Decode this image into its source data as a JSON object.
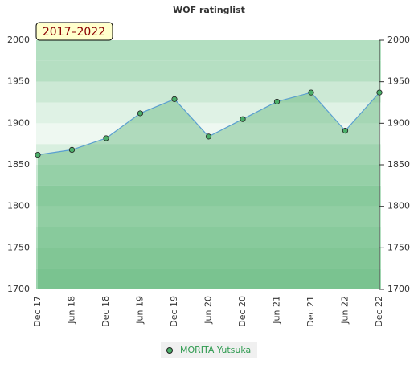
{
  "chart_data": {
    "type": "area",
    "title": "WOF ratinglist",
    "annotation": "2017–2022",
    "categories": [
      "Dec 17",
      "Jun 18",
      "Dec 18",
      "Jun 19",
      "Dec 19",
      "Jun 20",
      "Dec 20",
      "Jun 21",
      "Dec 21",
      "Jun 22",
      "Dec 22"
    ],
    "series": [
      {
        "name": "MORITA Yutsuka",
        "color": "#5a9fd0",
        "values": [
          1862,
          1868,
          1882,
          1912,
          1929,
          1884,
          1905,
          1926,
          1937,
          1891,
          1937
        ]
      }
    ],
    "ylim": [
      1700,
      2000
    ],
    "yticks": [
      1700,
      1750,
      1800,
      1850,
      1900,
      1950,
      2000
    ]
  }
}
